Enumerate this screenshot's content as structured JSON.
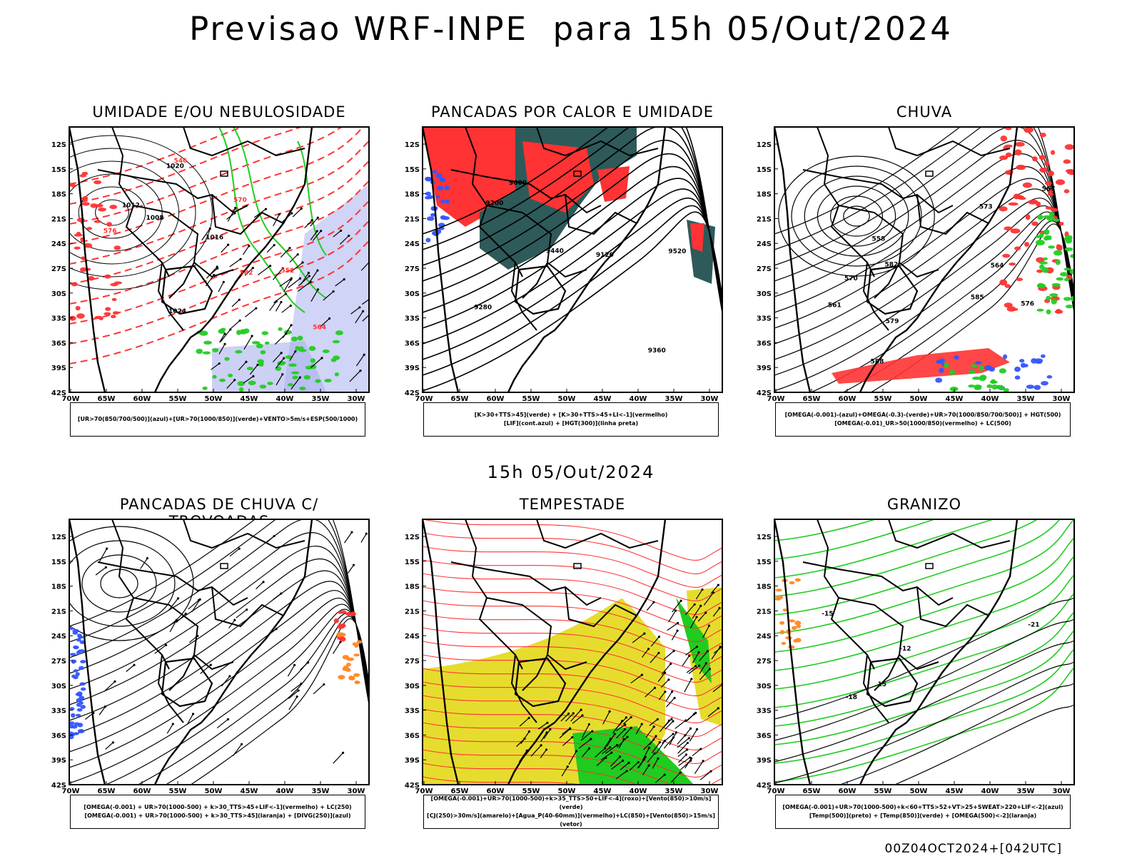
{
  "title": "Previsao WRF-INPE  para 15h 05/Out/2024",
  "mid_title": "15h 05/Out/2024",
  "footer": "00Z04OCT2024+[042UTC]",
  "axes": {
    "lat_ticks": [
      "12S",
      "15S",
      "18S",
      "21S",
      "24S",
      "27S",
      "30S",
      "33S",
      "36S",
      "39S",
      "42S"
    ],
    "lon_ticks": [
      "70W",
      "65W",
      "60W",
      "55W",
      "50W",
      "45W",
      "40W",
      "35W",
      "30W"
    ]
  },
  "colors": {
    "red": "#ff3333",
    "green": "#22cc22",
    "blue": "#3355ff",
    "yellow": "#e6dc2e",
    "teal": "#2e5a5a",
    "orange": "#ff8822",
    "lavender": "#aab0ee"
  },
  "panels": [
    {
      "title": "UMIDADE E/OU NEBULOSIDADE",
      "legend": [
        "[UR>70(850/700/500)](azul)+[UR>70(1000/850)](verde)+VENTO>5m/s+ESP(500/1000)"
      ],
      "labels": [
        "1008",
        "1012",
        "1016",
        "1020",
        "1024",
        "570",
        "576",
        "582",
        "564",
        "552",
        "546"
      ]
    },
    {
      "title": "PANCADAS POR CALOR E UMIDADE",
      "legend": [
        "[K>30+TTS>45](verde) + [K>30+TTS>45+LI<-1](vermelho)",
        "[LIF](cont.azul) + [HGT(300)](linha preta)"
      ],
      "labels": [
        "9600",
        "9520",
        "9440",
        "9360",
        "9280",
        "9200",
        "9120"
      ]
    },
    {
      "title": "CHUVA",
      "legend": [
        "[OMEGA(-0.001)-(azul)+OMEGA(-0.3)-(verde)+UR>70(1000/850/700/500)] + HGT(500)",
        "[OMEGA(-0.01)_UR>50(1000/850)(vermelho) + LC(500)"
      ],
      "labels": [
        "588",
        "585",
        "582",
        "579",
        "576",
        "573",
        "570",
        "567",
        "564",
        "561",
        "558"
      ]
    },
    {
      "title": "PANCADAS DE CHUVA C/ TROVOADAS",
      "legend": [
        "[OMEGA(-0.001) + UR>70(1000-500) + k>30_TTS>45+LIF<-1](vermelho) + LC(250)",
        "[OMEGA(-0.001) + UR>70(1000-500) + k>30_TTS>45](laranja) + [DIVG(250)](azul)"
      ],
      "labels": []
    },
    {
      "title": "TEMPESTADE",
      "legend": [
        "[OMEGA(-0.001)+UR>70(1000-500)+k>35_TTS>50+LIF<-4](roxo)+[Vento(850)>10m/s](verde)",
        "[CJ(250)>30m/s](amarelo)+[Agua_P(40-60mm)](vermelho)+LC(850)+[Vento(850)>15m/s](vetor)"
      ],
      "labels": []
    },
    {
      "title": "GRANIZO",
      "legend": [
        "[OMEGA(-0.001)+UR>70(1000-500)+k<60+TTS>52+VT>25+SWEAT>220+LIF<-2](azul)",
        "[Temp(500)](preto) + [Temp(850)](verde) + [OMEGA(500)<-2](laranja)"
      ],
      "labels": [
        "-12",
        "-15",
        "-18",
        "-21",
        "15"
      ]
    }
  ]
}
